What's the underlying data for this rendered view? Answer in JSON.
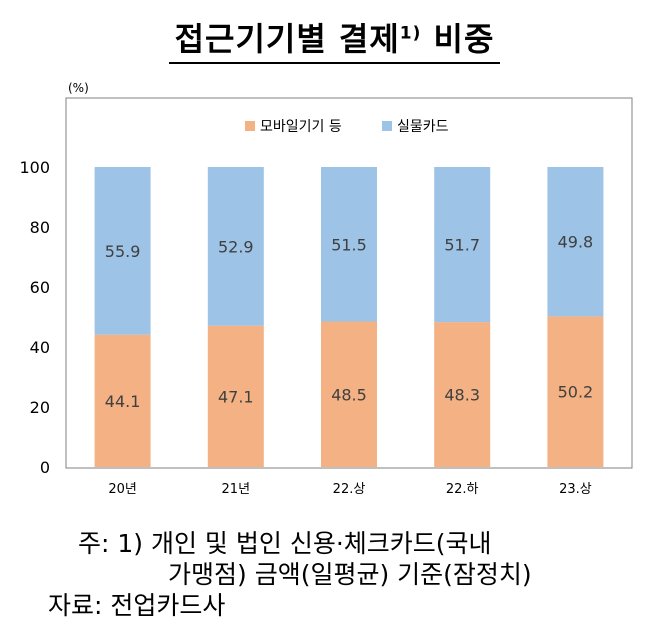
{
  "title": {
    "main": "접근기기별 결제",
    "sup": "1)",
    "tail": "비중"
  },
  "chart_data": {
    "type": "bar",
    "stacked": true,
    "unit": "(%)",
    "categories": [
      "20년",
      "21년",
      "22.상",
      "22.하",
      "23.상"
    ],
    "series": [
      {
        "name": "모바일기기 등",
        "values": [
          44.1,
          47.1,
          48.5,
          48.3,
          50.2
        ],
        "color": "#f4b183"
      },
      {
        "name": "실물카드",
        "values": [
          55.9,
          52.9,
          51.5,
          51.7,
          49.8
        ],
        "color": "#9dc3e6"
      }
    ],
    "ylim": [
      0,
      100
    ],
    "yticks": [
      0,
      20,
      40,
      60,
      80,
      100
    ],
    "legend": "top-center",
    "grid": false
  },
  "notes": {
    "line1": "주: 1) 개인 및 법인 신용·체크카드(국내",
    "line2": "가맹점) 금액(일평균) 기준(잠정치)",
    "line3": "자료: 전업카드사"
  }
}
